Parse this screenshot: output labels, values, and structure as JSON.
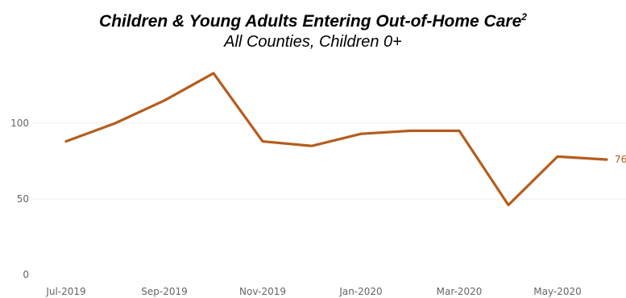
{
  "header": {
    "title": "Children & Young Adults Entering Out-of-Home Care",
    "title_sup": "2",
    "subtitle": "All Counties, Children 0+"
  },
  "chart_data": {
    "type": "line",
    "title": "Children & Young Adults Entering Out-of-Home Care",
    "subtitle": "All Counties, Children 0+",
    "x": [
      "Jul-2019",
      "Aug-2019",
      "Sep-2019",
      "Oct-2019",
      "Nov-2019",
      "Dec-2019",
      "Jan-2020",
      "Feb-2020",
      "Mar-2020",
      "Apr-2020",
      "May-2020",
      "Jun-2020"
    ],
    "x_tick_labels": [
      "Jul-2019",
      "Sep-2019",
      "Nov-2019",
      "Jan-2020",
      "Mar-2020",
      "May-2020"
    ],
    "series": [
      {
        "values": [
          88,
          100,
          115,
          133,
          88,
          85,
          93,
          95,
          95,
          46,
          78,
          76
        ],
        "color": "#b55d1c"
      }
    ],
    "y_ticks": [
      0,
      50,
      100
    ],
    "ylim": [
      0,
      140
    ],
    "grid": true,
    "end_label": "76"
  }
}
